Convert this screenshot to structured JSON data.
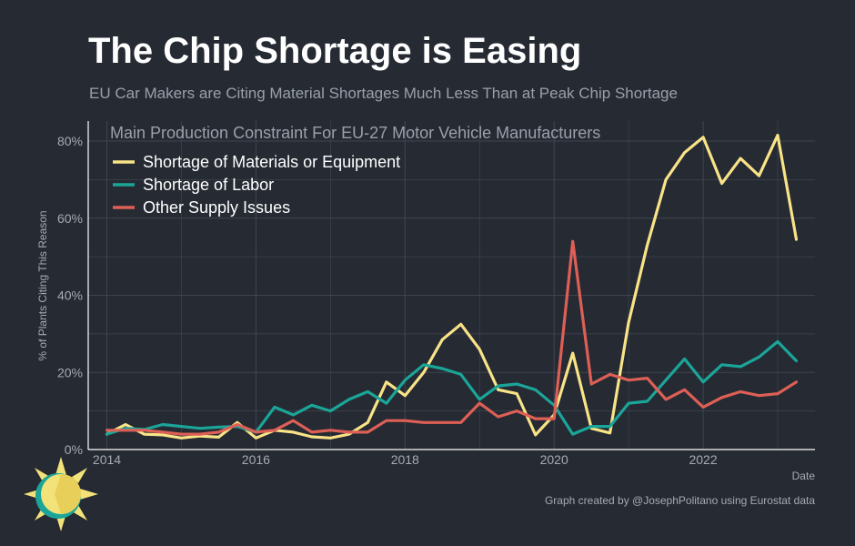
{
  "header": {
    "title": "The Chip Shortage is Easing",
    "subtitle": "EU Car Makers are Citing Material Shortages Much Less Than at Peak Chip Shortage"
  },
  "footer": {
    "credit": "Graph created by @JosephPolitano using Eurostat data"
  },
  "colors": {
    "background": "#252a33",
    "grid": "#3e4450",
    "axis": "#ffffff",
    "materials": "#f9e387",
    "labor": "#1ba598",
    "other": "#dd5f55",
    "logo_sun": "#f3e27a",
    "logo_ring": "#1ba598"
  },
  "logo": {
    "icon": "sun-logo-icon"
  },
  "chart_data": {
    "type": "line",
    "title": "Main Production Constraint For EU-27 Motor Vehicle Manufacturers",
    "xlabel": "Date",
    "ylabel": "% of Plants Citing This Reason",
    "xlim": [
      2013.75,
      2023.5
    ],
    "ylim": [
      0,
      80
    ],
    "x_ticks": [
      2014,
      2016,
      2018,
      2020,
      2022
    ],
    "x_tick_labels": [
      "2014",
      "2016",
      "2018",
      "2020",
      "2022"
    ],
    "y_ticks": [
      0,
      20,
      40,
      60,
      80
    ],
    "y_tick_labels": [
      "0%",
      "20%",
      "40%",
      "60%",
      "80%"
    ],
    "grid": true,
    "legend_position": "top-left",
    "x": [
      2014.0,
      2014.25,
      2014.5,
      2014.75,
      2015.0,
      2015.25,
      2015.5,
      2015.75,
      2016.0,
      2016.25,
      2016.5,
      2016.75,
      2017.0,
      2017.25,
      2017.5,
      2017.75,
      2018.0,
      2018.25,
      2018.5,
      2018.75,
      2019.0,
      2019.25,
      2019.5,
      2019.75,
      2020.0,
      2020.25,
      2020.5,
      2020.75,
      2021.0,
      2021.25,
      2021.5,
      2021.75,
      2022.0,
      2022.25,
      2022.5,
      2022.75,
      2023.0,
      2023.25
    ],
    "series": [
      {
        "name": "Shortage of Materials or Equipment",
        "color": "#f9e387",
        "values": [
          4.0,
          6.5,
          4.0,
          3.8,
          3.0,
          3.5,
          3.2,
          7.0,
          3.0,
          5.0,
          4.5,
          3.3,
          3.0,
          4.0,
          7.0,
          17.5,
          14.0,
          20.0,
          28.5,
          32.5,
          26.0,
          15.5,
          14.5,
          3.8,
          9.0,
          25.0,
          5.5,
          4.3,
          33.0,
          53.0,
          70.0,
          77.0,
          81.0,
          69.0,
          75.5,
          71.0,
          81.5,
          54.5
        ]
      },
      {
        "name": "Shortage of Labor",
        "color": "#1ba598",
        "values": [
          4.0,
          5.5,
          5.2,
          6.5,
          6.0,
          5.5,
          5.8,
          6.0,
          4.5,
          11.0,
          9.0,
          11.5,
          10.0,
          13.0,
          15.0,
          12.0,
          18.0,
          22.0,
          21.0,
          19.5,
          13.0,
          16.5,
          17.0,
          15.5,
          11.5,
          4.0,
          6.0,
          6.0,
          12.0,
          12.5,
          18.0,
          23.5,
          17.5,
          22.0,
          21.5,
          24.0,
          28.0,
          23.0
        ]
      },
      {
        "name": "Other Supply Issues",
        "color": "#dd5f55",
        "values": [
          5.0,
          5.0,
          5.0,
          4.5,
          4.0,
          4.0,
          4.5,
          6.5,
          4.5,
          5.0,
          7.5,
          4.5,
          5.0,
          4.5,
          4.5,
          7.5,
          7.5,
          7.0,
          7.0,
          7.0,
          12.0,
          8.5,
          10.0,
          8.0,
          8.0,
          54.0,
          17.0,
          19.5,
          18.0,
          18.5,
          13.0,
          15.5,
          11.0,
          13.5,
          15.0,
          14.0,
          14.5,
          17.5
        ]
      }
    ]
  }
}
